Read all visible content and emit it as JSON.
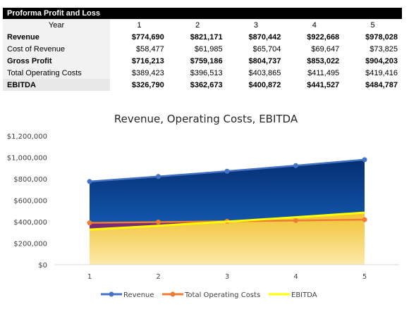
{
  "table": {
    "title": "Proforma Profit and Loss",
    "header": {
      "label": "Year",
      "years": [
        "1",
        "2",
        "3",
        "4",
        "5"
      ]
    },
    "rows": [
      {
        "label": "Revenue",
        "bold": true,
        "values": [
          "$774,690",
          "$821,171",
          "$870,442",
          "$922,668",
          "$978,028"
        ]
      },
      {
        "label": "Cost of Revenue",
        "bold": false,
        "values": [
          "$58,477",
          "$61,985",
          "$65,704",
          "$69,647",
          "$73,825"
        ]
      },
      {
        "label": "Gross Profit",
        "bold": true,
        "values": [
          "$716,213",
          "$759,186",
          "$804,737",
          "$853,022",
          "$904,203"
        ]
      },
      {
        "label": "Total Operating Costs",
        "bold": false,
        "values": [
          "$389,423",
          "$396,513",
          "$403,865",
          "$411,495",
          "$419,416"
        ]
      },
      {
        "label": "EBITDA",
        "bold": true,
        "values": [
          "$326,790",
          "$362,673",
          "$400,872",
          "$441,527",
          "$484,787"
        ]
      }
    ]
  },
  "chart_data": {
    "type": "area",
    "title": "Revenue, Operating Costs, EBITDA",
    "categories": [
      "1",
      "2",
      "3",
      "4",
      "5"
    ],
    "series": [
      {
        "name": "Revenue",
        "values": [
          774690,
          821171,
          870442,
          922668,
          978028
        ],
        "color": "#4472c4"
      },
      {
        "name": "Total Operating Costs",
        "values": [
          389423,
          396513,
          403865,
          411495,
          419416
        ],
        "color": "#ed7d31"
      },
      {
        "name": "EBITDA",
        "values": [
          326790,
          362673,
          400872,
          441527,
          484787
        ],
        "color": "#ffff00"
      }
    ],
    "ylim": [
      0,
      1200000
    ],
    "yticks": [
      "$0",
      "$200,000",
      "$400,000",
      "$600,000",
      "$800,000",
      "$1,000,000",
      "$1,200,000"
    ],
    "grid": false,
    "legend": "bottom",
    "colors": {
      "revenue_fill": "#0b3f8f",
      "opcost_fill": "#7b2a7a",
      "ebitda_fill": "#f2c94c",
      "axis": "#d9d9d9"
    }
  }
}
